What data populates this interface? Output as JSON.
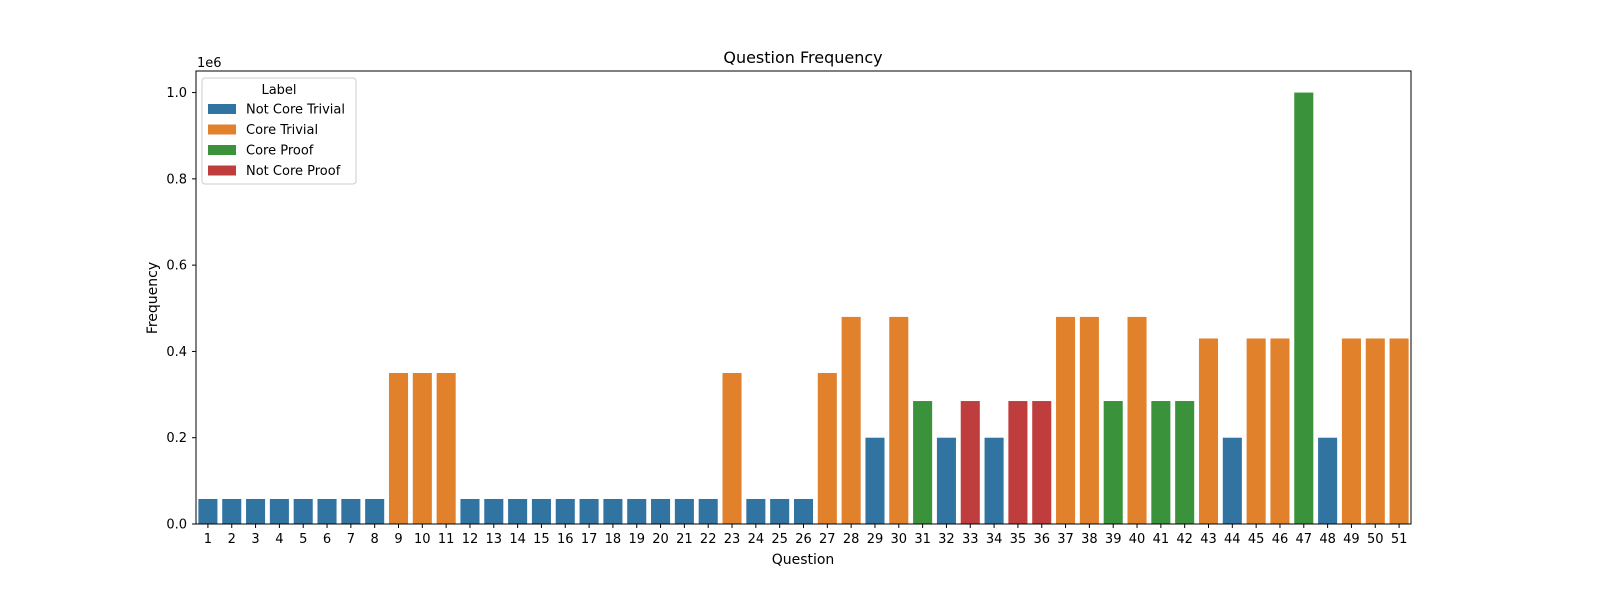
{
  "chart_data": {
    "type": "bar",
    "title": "Question Frequency",
    "xlabel": "Question",
    "ylabel": "Frequency",
    "y_offset_text": "1e6",
    "ylim": [
      0,
      1.05
    ],
    "yticks": [
      0.0,
      0.2,
      0.4,
      0.6,
      0.8,
      1.0
    ],
    "ytick_labels": [
      "0.0",
      "0.2",
      "0.4",
      "0.6",
      "0.8",
      "1.0"
    ],
    "grid": false,
    "legend": {
      "title": "Label",
      "placement": "top-left",
      "entries": [
        "Not Core Trivial",
        "Core Trivial",
        "Core Proof",
        "Not Core Proof"
      ]
    },
    "label_colors": {
      "Not Core Trivial": "#3274a1",
      "Core Trivial": "#e1812c",
      "Core Proof": "#3a923a",
      "Not Core Proof": "#c03d3e"
    },
    "categories": [
      "1",
      "2",
      "3",
      "4",
      "5",
      "6",
      "7",
      "8",
      "9",
      "10",
      "11",
      "12",
      "13",
      "14",
      "15",
      "16",
      "17",
      "18",
      "19",
      "20",
      "21",
      "22",
      "23",
      "24",
      "25",
      "26",
      "27",
      "28",
      "29",
      "30",
      "31",
      "32",
      "33",
      "34",
      "35",
      "36",
      "37",
      "38",
      "39",
      "40",
      "41",
      "42",
      "43",
      "44",
      "45",
      "46",
      "47",
      "48",
      "49",
      "50",
      "51"
    ],
    "values": [
      0.058,
      0.058,
      0.058,
      0.058,
      0.058,
      0.058,
      0.058,
      0.058,
      0.35,
      0.35,
      0.35,
      0.058,
      0.058,
      0.058,
      0.058,
      0.058,
      0.058,
      0.058,
      0.058,
      0.058,
      0.058,
      0.058,
      0.35,
      0.058,
      0.058,
      0.058,
      0.35,
      0.48,
      0.2,
      0.48,
      0.285,
      0.2,
      0.285,
      0.2,
      0.285,
      0.285,
      0.48,
      0.48,
      0.285,
      0.48,
      0.285,
      0.285,
      0.43,
      0.2,
      0.43,
      0.43,
      1.0,
      0.2,
      0.43,
      0.43,
      0.43
    ],
    "labels": [
      "Not Core Trivial",
      "Not Core Trivial",
      "Not Core Trivial",
      "Not Core Trivial",
      "Not Core Trivial",
      "Not Core Trivial",
      "Not Core Trivial",
      "Not Core Trivial",
      "Core Trivial",
      "Core Trivial",
      "Core Trivial",
      "Not Core Trivial",
      "Not Core Trivial",
      "Not Core Trivial",
      "Not Core Trivial",
      "Not Core Trivial",
      "Not Core Trivial",
      "Not Core Trivial",
      "Not Core Trivial",
      "Not Core Trivial",
      "Not Core Trivial",
      "Not Core Trivial",
      "Core Trivial",
      "Not Core Trivial",
      "Not Core Trivial",
      "Not Core Trivial",
      "Core Trivial",
      "Core Trivial",
      "Not Core Trivial",
      "Core Trivial",
      "Core Proof",
      "Not Core Trivial",
      "Not Core Proof",
      "Not Core Trivial",
      "Not Core Proof",
      "Not Core Proof",
      "Core Trivial",
      "Core Trivial",
      "Core Proof",
      "Core Trivial",
      "Core Proof",
      "Core Proof",
      "Core Trivial",
      "Not Core Trivial",
      "Core Trivial",
      "Core Trivial",
      "Core Proof",
      "Not Core Trivial",
      "Core Trivial",
      "Core Trivial",
      "Core Trivial"
    ]
  }
}
